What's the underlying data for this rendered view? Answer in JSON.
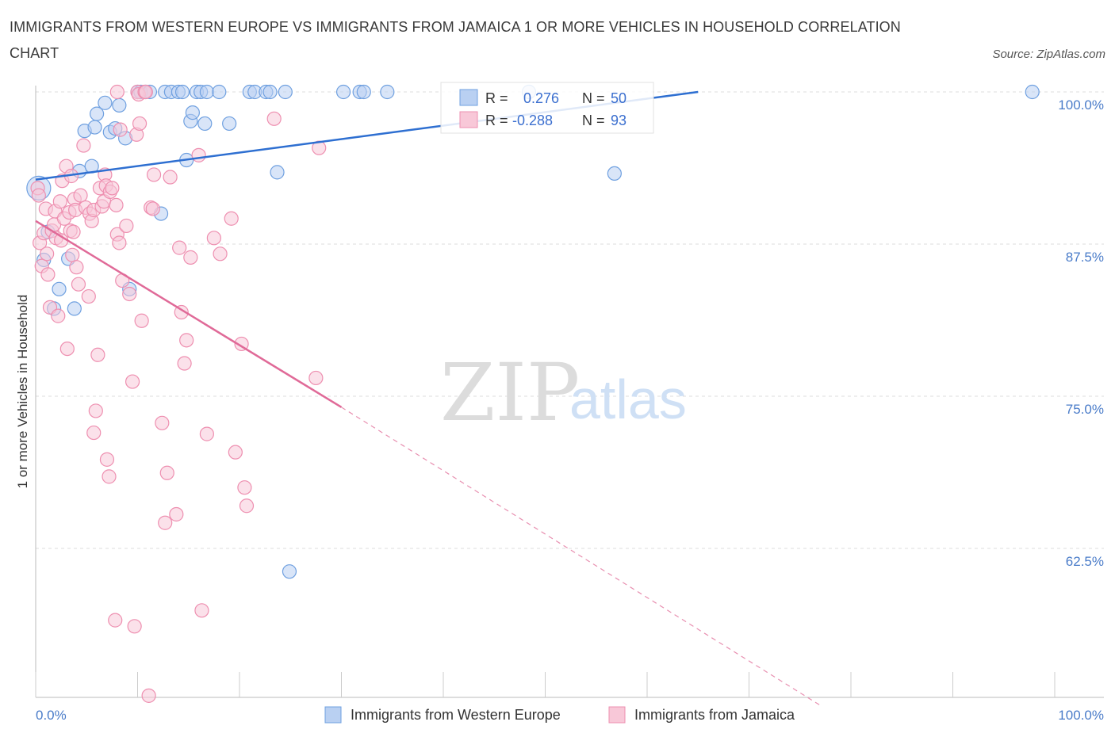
{
  "title": "IMMIGRANTS FROM WESTERN EUROPE VS IMMIGRANTS FROM JAMAICA 1 OR MORE VEHICLES IN HOUSEHOLD CORRELATION CHART",
  "source": "Source: ZipAtlas.com",
  "watermark": {
    "zip": "ZIP",
    "atlas": "atlas"
  },
  "chart_data": {
    "type": "scatter",
    "ylabel": "1 or more Vehicles in Household",
    "xlim": [
      0,
      100
    ],
    "ylim": [
      49.5,
      100.4
    ],
    "x_ticks": [
      "0.0%",
      "100.0%"
    ],
    "y_ticks": [
      {
        "value": 100.0,
        "label": "100.0%"
      },
      {
        "value": 87.5,
        "label": "87.5%"
      },
      {
        "value": 75.0,
        "label": "75.0%"
      },
      {
        "value": 62.5,
        "label": "62.5%"
      }
    ],
    "grid": true,
    "legend_position": "bottom",
    "stats": [
      {
        "r_label": "R =",
        "r": "0.276",
        "n_label": "N =",
        "n": "50"
      },
      {
        "r_label": "R =",
        "r": "-0.288",
        "n_label": "N =",
        "n": "93"
      }
    ],
    "series": [
      {
        "name": "Immigrants from Western Europe",
        "color": "#6fa0e0",
        "fill": "#b9d0f2",
        "trend": {
          "x": [
            0,
            65
          ],
          "y": [
            92.8,
            100.0
          ]
        },
        "points": [
          [
            0.3,
            92.1,
            2
          ],
          [
            0.8,
            86.2,
            1
          ],
          [
            1.2,
            88.5,
            1
          ],
          [
            1.8,
            82.2,
            1
          ],
          [
            2.3,
            83.8,
            1
          ],
          [
            3.2,
            86.3,
            1
          ],
          [
            3.8,
            82.2,
            1
          ],
          [
            4.3,
            93.5,
            1
          ],
          [
            4.8,
            96.8,
            1
          ],
          [
            5.5,
            93.9,
            1
          ],
          [
            5.8,
            97.1,
            1
          ],
          [
            6.0,
            98.2,
            1
          ],
          [
            6.8,
            99.1,
            1
          ],
          [
            7.3,
            96.7,
            1
          ],
          [
            7.8,
            97.0,
            1
          ],
          [
            8.2,
            98.9,
            1
          ],
          [
            8.8,
            96.2,
            1
          ],
          [
            9.2,
            83.8,
            1
          ],
          [
            10.0,
            100.0,
            1
          ],
          [
            10.3,
            100.0,
            1
          ],
          [
            10.8,
            100.0,
            1
          ],
          [
            11.2,
            100.0,
            1
          ],
          [
            12.3,
            90.0,
            1
          ],
          [
            12.7,
            100.0,
            1
          ],
          [
            13.3,
            100.0,
            1
          ],
          [
            14.0,
            100.0,
            1
          ],
          [
            14.4,
            100.0,
            1
          ],
          [
            14.8,
            94.4,
            1
          ],
          [
            15.2,
            97.6,
            1
          ],
          [
            15.4,
            98.3,
            1
          ],
          [
            15.8,
            100.0,
            1
          ],
          [
            16.2,
            100.0,
            1
          ],
          [
            16.6,
            97.4,
            1
          ],
          [
            16.8,
            100.0,
            1
          ],
          [
            18.0,
            100.0,
            1
          ],
          [
            19.0,
            97.4,
            1
          ],
          [
            21.0,
            100.0,
            1
          ],
          [
            21.5,
            100.0,
            1
          ],
          [
            22.6,
            100.0,
            1
          ],
          [
            23.0,
            100.0,
            1
          ],
          [
            23.7,
            93.4,
            1
          ],
          [
            24.5,
            100.0,
            1
          ],
          [
            24.9,
            60.6,
            1
          ],
          [
            30.2,
            100.0,
            1
          ],
          [
            31.8,
            100.0,
            1
          ],
          [
            32.2,
            100.0,
            1
          ],
          [
            34.5,
            100.0,
            1
          ],
          [
            48.4,
            100.0,
            1
          ],
          [
            56.8,
            93.3,
            1
          ],
          [
            97.8,
            100.0,
            1
          ]
        ]
      },
      {
        "name": "Immigrants from Jamaica",
        "color": "#ee8fb0",
        "fill": "#f8c8d8",
        "trend": {
          "x": [
            0,
            30
          ],
          "y": [
            89.4,
            74.1
          ]
        },
        "trend_dashed": {
          "x": [
            30,
            77
          ],
          "y": [
            74.1,
            49.6
          ]
        },
        "points": [
          [
            0.2,
            92.1,
            1
          ],
          [
            0.3,
            91.5,
            1
          ],
          [
            0.4,
            87.6,
            1
          ],
          [
            0.6,
            85.7,
            1
          ],
          [
            0.8,
            88.4,
            1
          ],
          [
            1.0,
            90.4,
            1
          ],
          [
            1.1,
            86.7,
            1
          ],
          [
            1.2,
            85.0,
            1
          ],
          [
            1.4,
            82.3,
            1
          ],
          [
            1.6,
            88.6,
            1
          ],
          [
            1.8,
            89.1,
            1
          ],
          [
            1.9,
            90.2,
            1
          ],
          [
            2.0,
            88.0,
            1
          ],
          [
            2.2,
            81.6,
            1
          ],
          [
            2.4,
            91.0,
            1
          ],
          [
            2.5,
            87.8,
            1
          ],
          [
            2.6,
            92.7,
            1
          ],
          [
            2.8,
            89.6,
            1
          ],
          [
            3.0,
            93.9,
            1
          ],
          [
            3.1,
            78.9,
            1
          ],
          [
            3.3,
            90.1,
            1
          ],
          [
            3.4,
            88.6,
            1
          ],
          [
            3.5,
            93.1,
            1
          ],
          [
            3.6,
            86.6,
            1
          ],
          [
            3.7,
            88.5,
            1
          ],
          [
            3.8,
            91.2,
            1
          ],
          [
            3.9,
            90.3,
            1
          ],
          [
            4.0,
            85.6,
            1
          ],
          [
            4.2,
            84.2,
            1
          ],
          [
            4.4,
            91.5,
            1
          ],
          [
            4.7,
            95.6,
            1
          ],
          [
            4.9,
            90.5,
            1
          ],
          [
            5.2,
            83.2,
            1
          ],
          [
            5.3,
            90.0,
            1
          ],
          [
            5.5,
            89.4,
            1
          ],
          [
            5.7,
            90.3,
            1
          ],
          [
            5.9,
            73.8,
            1
          ],
          [
            6.1,
            78.4,
            1
          ],
          [
            5.7,
            72.0,
            1
          ],
          [
            6.3,
            92.1,
            1
          ],
          [
            6.5,
            90.6,
            1
          ],
          [
            6.7,
            91.0,
            1
          ],
          [
            6.8,
            93.2,
            1
          ],
          [
            6.9,
            92.3,
            1
          ],
          [
            7.0,
            69.8,
            1
          ],
          [
            7.2,
            68.4,
            1
          ],
          [
            7.3,
            91.8,
            1
          ],
          [
            7.5,
            92.1,
            1
          ],
          [
            7.8,
            56.6,
            1
          ],
          [
            7.9,
            90.7,
            1
          ],
          [
            8.0,
            88.3,
            1
          ],
          [
            8.2,
            87.6,
            1
          ],
          [
            8.5,
            84.5,
            1
          ],
          [
            8.3,
            96.9,
            1
          ],
          [
            8.0,
            100.0,
            1
          ],
          [
            8.9,
            89.0,
            1
          ],
          [
            9.2,
            83.4,
            1
          ],
          [
            9.5,
            76.2,
            1
          ],
          [
            9.7,
            56.1,
            1
          ],
          [
            9.9,
            96.5,
            1
          ],
          [
            10.0,
            100.0,
            1
          ],
          [
            10.1,
            99.8,
            1
          ],
          [
            10.2,
            97.4,
            1
          ],
          [
            10.4,
            81.2,
            1
          ],
          [
            10.7,
            100.0,
            1
          ],
          [
            10.8,
            100.0,
            1
          ],
          [
            11.1,
            50.4,
            1
          ],
          [
            11.3,
            90.5,
            1
          ],
          [
            11.5,
            90.4,
            1
          ],
          [
            11.6,
            93.2,
            1
          ],
          [
            12.4,
            72.8,
            1
          ],
          [
            12.7,
            64.6,
            1
          ],
          [
            12.9,
            68.7,
            1
          ],
          [
            13.2,
            93.0,
            1
          ],
          [
            13.8,
            65.3,
            1
          ],
          [
            14.1,
            87.2,
            1
          ],
          [
            14.3,
            81.9,
            1
          ],
          [
            14.6,
            77.7,
            1
          ],
          [
            14.8,
            79.6,
            1
          ],
          [
            15.2,
            86.4,
            1
          ],
          [
            16.0,
            94.8,
            1
          ],
          [
            16.3,
            57.4,
            1
          ],
          [
            16.8,
            71.9,
            1
          ],
          [
            17.5,
            88.0,
            1
          ],
          [
            18.1,
            86.7,
            1
          ],
          [
            19.2,
            89.6,
            1
          ],
          [
            19.6,
            70.4,
            1
          ],
          [
            20.2,
            79.3,
            1
          ],
          [
            20.5,
            67.5,
            1
          ],
          [
            20.7,
            66.0,
            1
          ],
          [
            23.4,
            97.8,
            1
          ],
          [
            27.5,
            76.5,
            1
          ],
          [
            27.8,
            95.4,
            1
          ]
        ]
      }
    ],
    "legend": [
      {
        "label": "Immigrants from Western Europe"
      },
      {
        "label": "Immigrants from Jamaica"
      }
    ]
  }
}
